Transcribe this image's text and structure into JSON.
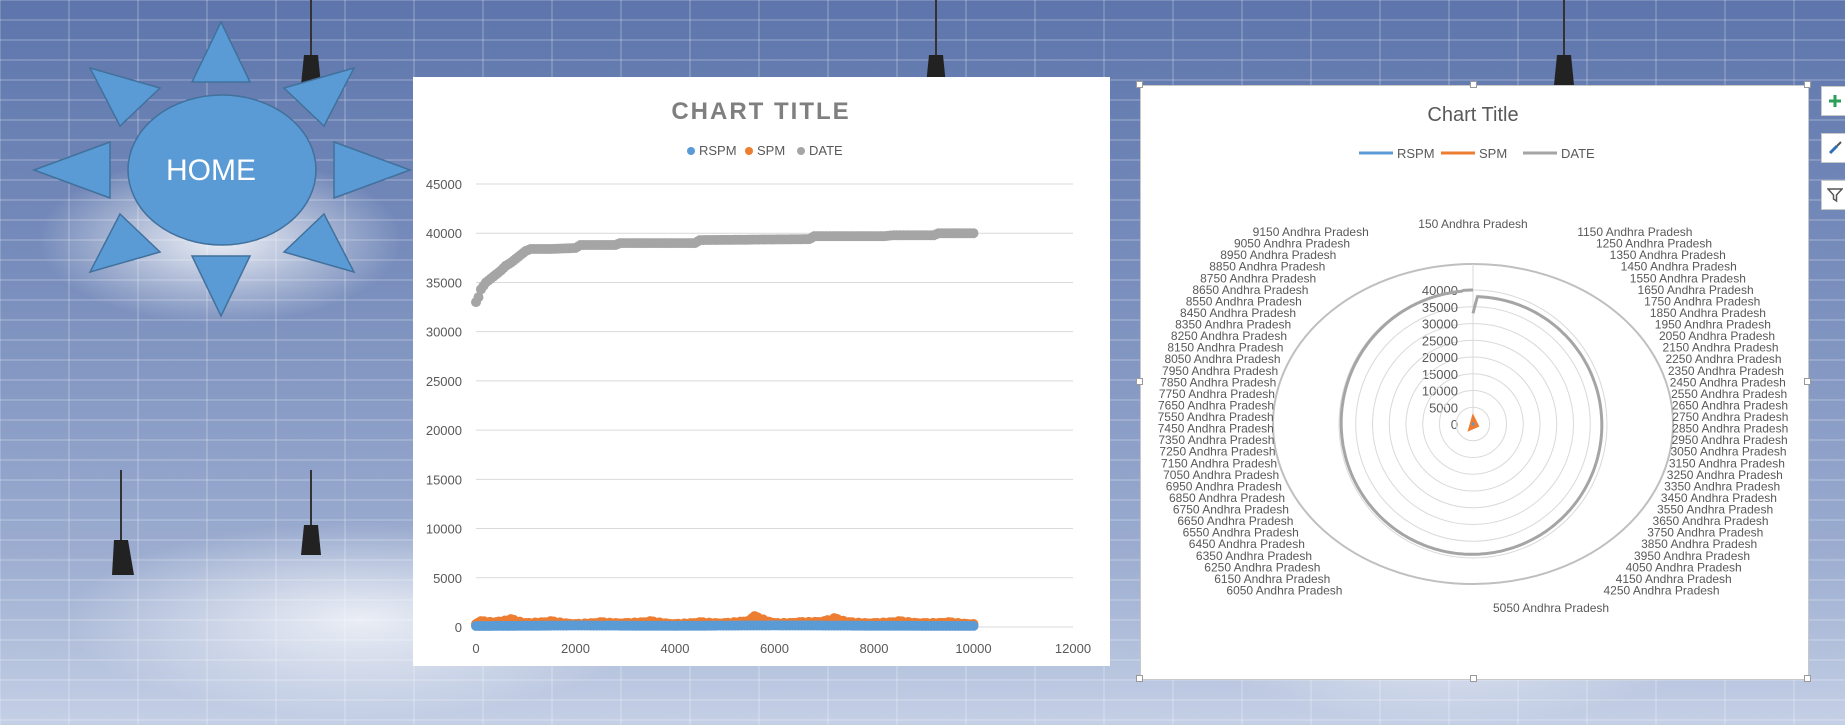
{
  "home": {
    "label": "HOME"
  },
  "colors": {
    "rspm": "#5b9bd5",
    "spm": "#ed7d31",
    "date": "#a5a5a5",
    "shape_fill": "#5b9bd5",
    "shape_border": "#41719c"
  },
  "chart_data": [
    {
      "type": "scatter",
      "title": "CHART TITLE",
      "legend": [
        "RSPM",
        "SPM",
        "DATE"
      ],
      "legend_position": "top",
      "xlim": [
        0,
        12000
      ],
      "ylim": [
        0,
        45000
      ],
      "x_ticks": [
        "0",
        "2000",
        "4000",
        "6000",
        "8000",
        "10000",
        "12000"
      ],
      "y_ticks": [
        "0",
        "5000",
        "10000",
        "15000",
        "20000",
        "25000",
        "30000",
        "35000",
        "40000",
        "45000"
      ],
      "grid": true,
      "series": [
        {
          "name": "DATE",
          "color": "#a5a5a5",
          "points": [
            [
              0,
              33000
            ],
            [
              50,
              33500
            ],
            [
              100,
              34300
            ],
            [
              200,
              35000
            ],
            [
              300,
              35400
            ],
            [
              400,
              35800
            ],
            [
              500,
              36200
            ],
            [
              600,
              36700
            ],
            [
              700,
              37000
            ],
            [
              800,
              37400
            ],
            [
              900,
              37800
            ],
            [
              1000,
              38200
            ],
            [
              1100,
              38400
            ],
            [
              1500,
              38400
            ],
            [
              2000,
              38500
            ],
            [
              2100,
              38800
            ],
            [
              2800,
              38800
            ],
            [
              2900,
              39000
            ],
            [
              4400,
              39000
            ],
            [
              4500,
              39300
            ],
            [
              6700,
              39400
            ],
            [
              6800,
              39700
            ],
            [
              8200,
              39700
            ],
            [
              8400,
              39800
            ],
            [
              9200,
              39800
            ],
            [
              9300,
              40000
            ],
            [
              10000,
              40000
            ]
          ]
        },
        {
          "name": "SPM",
          "color": "#ed7d31",
          "points": [
            [
              0,
              300
            ],
            [
              100,
              600
            ],
            [
              400,
              500
            ],
            [
              700,
              800
            ],
            [
              1000,
              400
            ],
            [
              1500,
              600
            ],
            [
              2000,
              300
            ],
            [
              2500,
              500
            ],
            [
              3000,
              400
            ],
            [
              3500,
              600
            ],
            [
              4000,
              300
            ],
            [
              4500,
              500
            ],
            [
              5000,
              400
            ],
            [
              5500,
              700
            ],
            [
              5600,
              1100
            ],
            [
              6000,
              400
            ],
            [
              6500,
              500
            ],
            [
              7000,
              600
            ],
            [
              7200,
              900
            ],
            [
              7500,
              500
            ],
            [
              8000,
              400
            ],
            [
              8500,
              600
            ],
            [
              9000,
              400
            ],
            [
              9500,
              500
            ],
            [
              10000,
              300
            ]
          ]
        },
        {
          "name": "RSPM",
          "color": "#5b9bd5",
          "points": [
            [
              0,
              100
            ],
            [
              2000,
              150
            ],
            [
              4000,
              120
            ],
            [
              6000,
              160
            ],
            [
              8000,
              130
            ],
            [
              10000,
              110
            ]
          ]
        }
      ]
    },
    {
      "type": "radar",
      "title": "Chart Title",
      "legend": [
        "RSPM",
        "SPM",
        "DATE"
      ],
      "legend_position": "top",
      "rlim": [
        0,
        40000
      ],
      "r_ticks": [
        "0",
        "5000",
        "10000",
        "15000",
        "20000",
        "25000",
        "30000",
        "35000",
        "40000"
      ],
      "top_label": "150 Andhra Pradesh",
      "bottom_label": "5050 Andhra Pradesh",
      "right_labels": [
        "1150 Andhra Pradesh",
        "1250 Andhra Pradesh",
        "1350 Andhra Pradesh",
        "1450 Andhra Pradesh",
        "1550 Andhra Pradesh",
        "1650 Andhra Pradesh",
        "1750 Andhra Pradesh",
        "1850 Andhra Pradesh",
        "1950 Andhra Pradesh",
        "2050 Andhra Pradesh",
        "2150 Andhra Pradesh",
        "2250 Andhra Pradesh",
        "2350 Andhra Pradesh",
        "2450 Andhra Pradesh",
        "2550 Andhra Pradesh",
        "2650 Andhra Pradesh",
        "2750 Andhra Pradesh",
        "2850 Andhra Pradesh",
        "2950 Andhra Pradesh",
        "3050 Andhra Pradesh",
        "3150 Andhra Pradesh",
        "3250 Andhra Pradesh",
        "3350 Andhra Pradesh",
        "3450 Andhra Pradesh",
        "3550 Andhra Pradesh",
        "3650 Andhra Pradesh",
        "3750 Andhra Pradesh",
        "3850 Andhra Pradesh",
        "3950 Andhra Pradesh",
        "4050 Andhra Pradesh",
        "4150 Andhra Pradesh",
        "4250 Andhra Pradesh"
      ],
      "left_labels": [
        "9150 Andhra Pradesh",
        "9050 Andhra Pradesh",
        "8950 Andhra Pradesh",
        "8850 Andhra Pradesh",
        "8750 Andhra Pradesh",
        "8650 Andhra Pradesh",
        "8550 Andhra Pradesh",
        "8450 Andhra Pradesh",
        "8350 Andhra Pradesh",
        "8250 Andhra Pradesh",
        "8150 Andhra Pradesh",
        "8050 Andhra Pradesh",
        "7950 Andhra Pradesh",
        "7850 Andhra Pradesh",
        "7750 Andhra Pradesh",
        "7650 Andhra Pradesh",
        "7550 Andhra Pradesh",
        "7450 Andhra Pradesh",
        "7350 Andhra Pradesh",
        "7250 Andhra Pradesh",
        "7150 Andhra Pradesh",
        "7050 Andhra Pradesh",
        "6950 Andhra Pradesh",
        "6850 Andhra Pradesh",
        "6750 Andhra Pradesh",
        "6650 Andhra Pradesh",
        "6550 Andhra Pradesh",
        "6450 Andhra Pradesh",
        "6350 Andhra Pradesh",
        "6250 Andhra Pradesh",
        "6150 Andhra Pradesh",
        "6050 Andhra Pradesh"
      ],
      "series": [
        {
          "name": "DATE",
          "color": "#a5a5a5",
          "shape": "ring near 39000 with a step to 40000 at the top"
        },
        {
          "name": "SPM",
          "color": "#ed7d31",
          "shape": "small shape near center"
        },
        {
          "name": "RSPM",
          "color": "#5b9bd5",
          "shape": "near zero"
        }
      ]
    }
  ]
}
